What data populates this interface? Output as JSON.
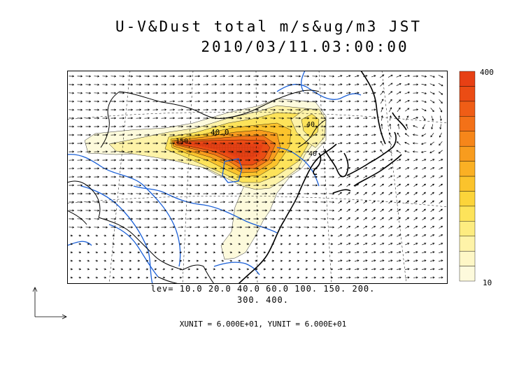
{
  "title_line1": "U-V&Dust total m/s&ug/m3 JST",
  "title_line2": "2010/03/11.03:00:00",
  "colorbar": {
    "max_label": "400",
    "min_label": "10",
    "colors": [
      "#fdfadc",
      "#fef7c6",
      "#fef3a8",
      "#fdec80",
      "#fde35a",
      "#fcd43a",
      "#fbc32c",
      "#fab024",
      "#f89c1e",
      "#f6861a",
      "#f37118",
      "#ef5d16",
      "#eb4c14",
      "#e74014"
    ]
  },
  "contour_levels_line1": "lev= 10.0 20.0 40.0 60.0 100. 150. 200.",
  "contour_levels_line2": "300. 400.",
  "units_line": "XUNIT = 6.000E+01, YUNIT = 6.000E+01",
  "contour_labels": [
    "40.0",
    "150",
    "40",
    "40"
  ],
  "colors": {
    "coast": "#000000",
    "border": "#000000",
    "rivers": "#1a5fd6"
  }
}
